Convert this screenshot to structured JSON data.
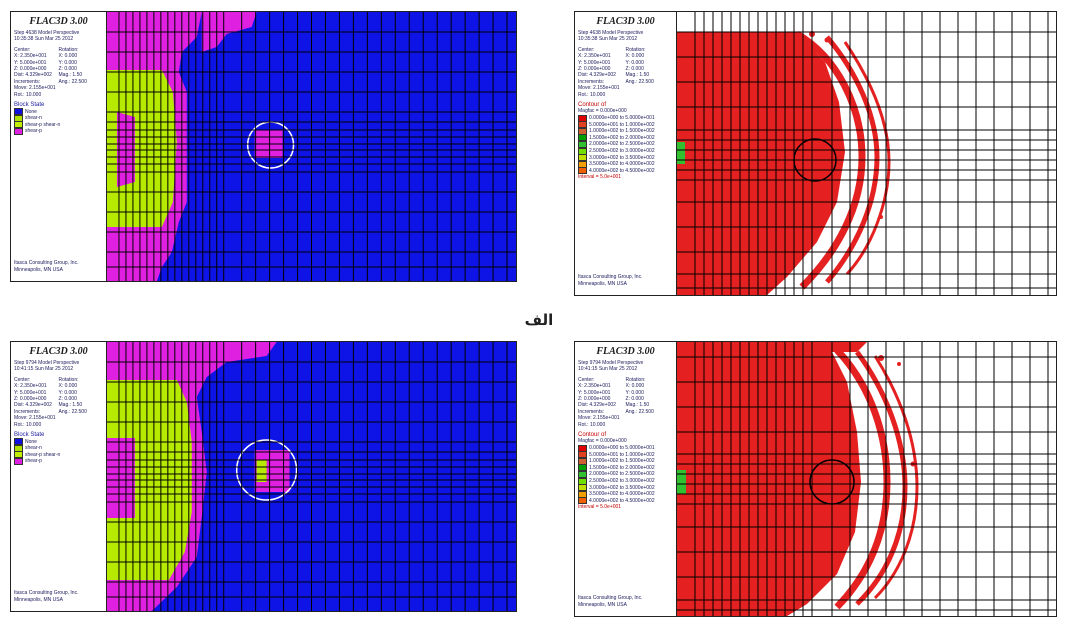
{
  "caption": "الف",
  "panels": [
    {
      "title": "FLAC3D 3.00",
      "type": "block-state",
      "header": [
        "Step 4638 Model Perspective",
        "10:35:38 Sun Mar 25 2012"
      ],
      "center_head": [
        "Center:",
        "Rotation:"
      ],
      "view": [
        [
          "X: 2.350e+001",
          "X: 0.000"
        ],
        [
          "Y: 5.000e+001",
          "Y: 0.000"
        ],
        [
          "Z: 0.000e+000",
          "Z: 0.000"
        ],
        [
          "Dist: 4.329e+002",
          "Mag.: 1.50"
        ],
        [
          "Increments:",
          "Ang.: 22.500"
        ]
      ],
      "extra": [
        "Move: 2.155e+001",
        "Rot.: 10.000"
      ],
      "section": "Block State",
      "items": [
        {
          "label": "None",
          "color": "#1010e0"
        },
        {
          "label": "shear-n",
          "color": "#b0e000"
        },
        {
          "label": "shear-p shear-n",
          "color": "#c0f000"
        },
        {
          "label": "shear-p",
          "color": "#e020e0"
        }
      ],
      "footer": [
        "Itasca Consulting Group, Inc.",
        "Minneapolis, MN USA"
      ]
    },
    {
      "title": "FLAC3D 3.00",
      "type": "displacement",
      "header": [
        "Step 4638 Model Perspective",
        "10:35:38 Sun Mar 25 2012"
      ],
      "center_head": [
        "Center:",
        "Rotation:"
      ],
      "view": [
        [
          "X: 2.350e+001",
          "X: 0.000"
        ],
        [
          "Y: 5.000e+001",
          "Y: 0.000"
        ],
        [
          "Z: 0.000e+000",
          "Z: 0.000"
        ],
        [
          "Dist: 4.329e+002",
          "Mag.: 1.50"
        ],
        [
          "Increments:",
          "Ang.: 22.500"
        ]
      ],
      "extra": [
        "Move: 2.155e+001",
        "Rot.: 10.000"
      ],
      "section": "Contour of",
      "contour_head": "Magfac = 0.000e+000",
      "items": [
        {
          "label": "0.0000e+000 to 5.0000e+001",
          "color": "#e00000"
        },
        {
          "label": "5.0000e+001 to 1.0000e+002",
          "color": "#e04020"
        },
        {
          "label": "1.0000e+002 to 1.5000e+002",
          "color": "#d06030"
        },
        {
          "label": "1.5000e+002 to 2.0000e+002",
          "color": "#00a000"
        },
        {
          "label": "2.0000e+002 to 2.5000e+002",
          "color": "#30c030"
        },
        {
          "label": "2.5000e+002 to 3.0000e+002",
          "color": "#70e000"
        },
        {
          "label": "3.0000e+002 to 3.5000e+002",
          "color": "#c0e000"
        },
        {
          "label": "3.5000e+002 to 4.0000e+002",
          "color": "#f0a000"
        },
        {
          "label": "4.0000e+002 to 4.5000e+002",
          "color": "#f06000"
        }
      ],
      "interval": "Interval = 5.0e+001",
      "footer": [
        "Itasca Consulting Group, Inc.",
        "Minneapolis, MN USA"
      ]
    },
    {
      "title": "FLAC3D 3.00",
      "type": "block-state",
      "header": [
        "Step 9794 Model Perspective",
        "10:41:15 Sun Mar 25 2012"
      ],
      "center_head": [
        "Center:",
        "Rotation:"
      ],
      "view": [
        [
          "X: 2.350e+001",
          "X: 0.000"
        ],
        [
          "Y: 5.000e+001",
          "Y: 0.000"
        ],
        [
          "Z: 0.000e+000",
          "Z: 0.000"
        ],
        [
          "Dist: 4.329e+002",
          "Mag.: 1.50"
        ],
        [
          "Increments:",
          "Ang.: 22.500"
        ]
      ],
      "extra": [
        "Move: 2.155e+001",
        "Rot.: 10.000"
      ],
      "section": "Block State",
      "items": [
        {
          "label": "None",
          "color": "#1010e0"
        },
        {
          "label": "shear-n",
          "color": "#b0e000"
        },
        {
          "label": "shear-p shear-n",
          "color": "#c0f000"
        },
        {
          "label": "shear-p",
          "color": "#e020e0"
        }
      ],
      "footer": [
        "Itasca Consulting Group, Inc.",
        "Minneapolis, MN USA"
      ]
    },
    {
      "title": "FLAC3D 3.00",
      "type": "displacement",
      "header": [
        "Step 9794 Model Perspective",
        "10:41:15 Sun Mar 25 2012"
      ],
      "center_head": [
        "Center:",
        "Rotation:"
      ],
      "view": [
        [
          "X: 2.350e+001",
          "X: 0.000"
        ],
        [
          "Y: 5.000e+001",
          "Y: 0.000"
        ],
        [
          "Z: 0.000e+000",
          "Z: 0.000"
        ],
        [
          "Dist: 4.329e+002",
          "Mag.: 1.50"
        ],
        [
          "Increments:",
          "Ang.: 22.500"
        ]
      ],
      "extra": [
        "Move: 2.155e+001",
        "Rot.: 10.000"
      ],
      "section": "Contour of",
      "contour_head": "Magfac = 0.000e+000",
      "items": [
        {
          "label": "0.0000e+000 to 5.0000e+001",
          "color": "#e00000"
        },
        {
          "label": "5.0000e+001 to 1.0000e+002",
          "color": "#e04020"
        },
        {
          "label": "1.0000e+002 to 1.5000e+002",
          "color": "#d06030"
        },
        {
          "label": "1.5000e+002 to 2.0000e+002",
          "color": "#00a000"
        },
        {
          "label": "2.0000e+002 to 2.5000e+002",
          "color": "#30c030"
        },
        {
          "label": "2.5000e+002 to 3.0000e+002",
          "color": "#70e000"
        },
        {
          "label": "3.0000e+002 to 3.5000e+002",
          "color": "#c0e000"
        },
        {
          "label": "3.5000e+002 to 4.0000e+002",
          "color": "#f0a000"
        },
        {
          "label": "4.0000e+002 to 4.5000e+002",
          "color": "#f06000"
        }
      ],
      "interval": "Interval = 5.0e+001",
      "footer": [
        "Itasca Consulting Group, Inc.",
        "Minneapolis, MN USA"
      ]
    }
  ]
}
